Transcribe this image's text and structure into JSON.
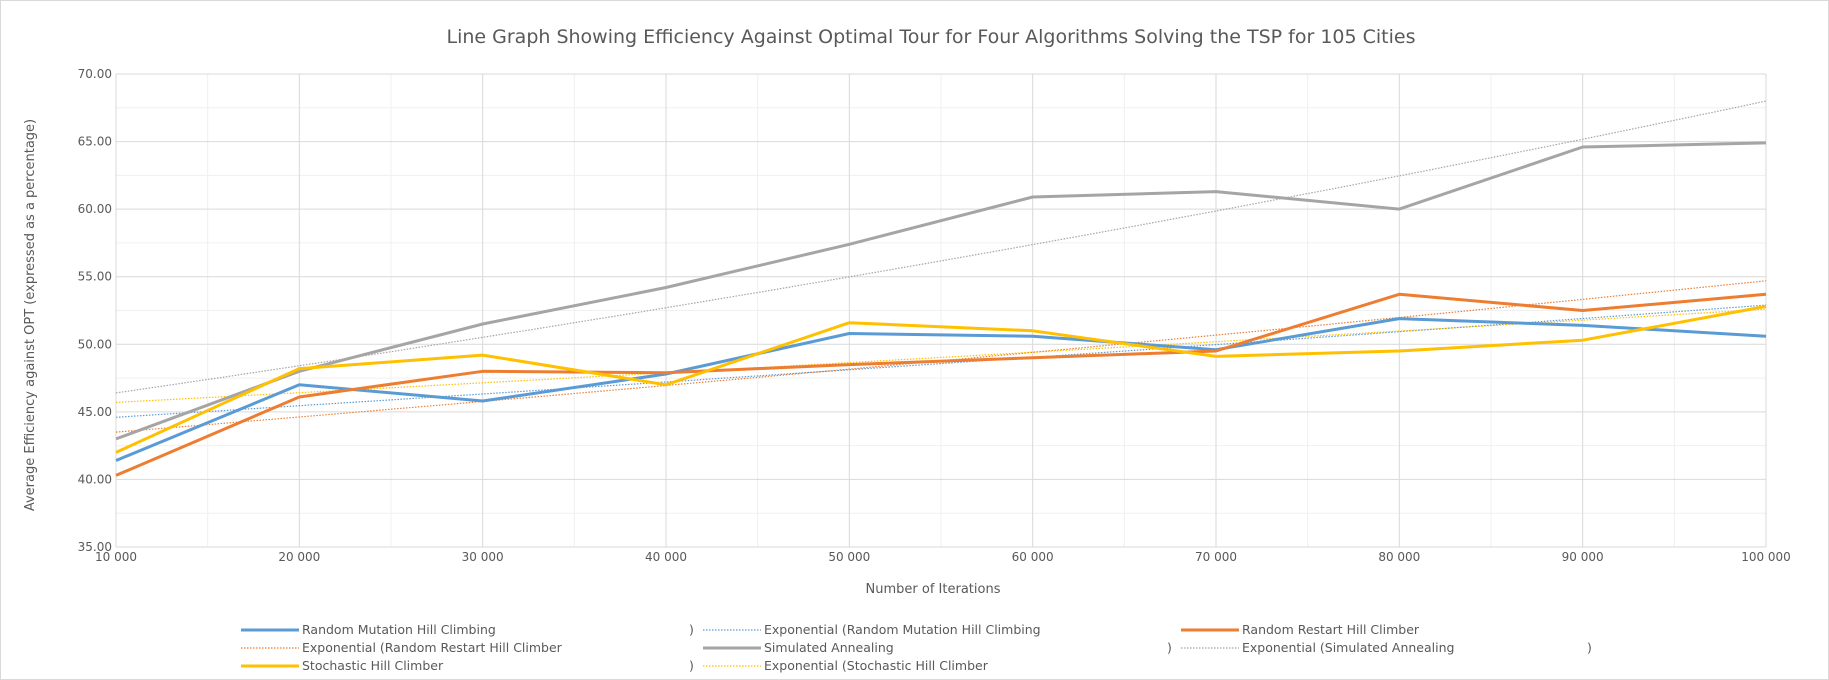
{
  "chart_data": {
    "type": "line",
    "title": "Line Graph Showing Efficiency Against Optimal Tour for Four Algorithms Solving the TSP for 105 Cities",
    "xlabel": "Number of Iterations",
    "ylabel": "Average Efficiency against OPT (expressed as a percentage)",
    "x": [
      10000,
      20000,
      30000,
      40000,
      50000,
      60000,
      70000,
      80000,
      90000,
      100000
    ],
    "x_tick_labels": [
      "10 000",
      "20 000",
      "30 000",
      "40 000",
      "50 000",
      "60 000",
      "70 000",
      "80 000",
      "90 000",
      "100 000"
    ],
    "xlim": [
      10000,
      100000
    ],
    "ylim": [
      35,
      70
    ],
    "y_ticks": [
      35,
      40,
      45,
      50,
      55,
      60,
      65,
      70
    ],
    "y_tick_labels": [
      "35.00",
      "40.00",
      "45.00",
      "50.00",
      "55.00",
      "60.00",
      "65.00",
      "70.00"
    ],
    "grid": true,
    "legend_position": "bottom",
    "series": [
      {
        "name": "Random Mutation Hill Climbing",
        "color": "#5b9bd5",
        "values": [
          41.4,
          47.0,
          45.8,
          47.8,
          50.8,
          50.6,
          49.6,
          51.9,
          51.4,
          50.6
        ]
      },
      {
        "name": "Random Restart Hill Climber",
        "color": "#ed7d31",
        "values": [
          40.3,
          46.1,
          48.0,
          47.9,
          48.5,
          49.0,
          49.5,
          53.7,
          52.5,
          53.7
        ]
      },
      {
        "name": "Simulated Annealing",
        "color": "#a5a5a5",
        "values": [
          43.0,
          48.0,
          51.5,
          54.2,
          57.4,
          60.9,
          61.3,
          60.0,
          64.6,
          64.9
        ]
      },
      {
        "name": "Stochastic Hill Climber",
        "color": "#ffc000",
        "values": [
          42.0,
          48.2,
          49.2,
          47.0,
          51.6,
          51.0,
          49.1,
          49.5,
          50.3,
          52.8
        ]
      }
    ],
    "trendlines": [
      {
        "name": "Exponential (Random Mutation Hill Climbing",
        "closing": ")",
        "color": "#5b9bd5",
        "type": "exponential",
        "start": 44.6,
        "end": 52.9
      },
      {
        "name": "Exponential (Random Restart Hill Climber",
        "closing": ")",
        "color": "#ed7d31",
        "type": "exponential",
        "start": 43.5,
        "end": 54.7
      },
      {
        "name": "Exponential (Simulated Annealing",
        "closing": ")",
        "color": "#a5a5a5",
        "type": "exponential",
        "start": 46.4,
        "end": 68.0
      },
      {
        "name": "Exponential (Stochastic Hill Climber",
        "closing": ")",
        "color": "#ffc000",
        "type": "exponential",
        "start": 45.7,
        "end": 52.6
      }
    ],
    "legend_order": [
      "s0",
      "t0",
      "s1",
      "t1",
      "s2",
      "t2",
      "s3",
      "t3"
    ]
  }
}
